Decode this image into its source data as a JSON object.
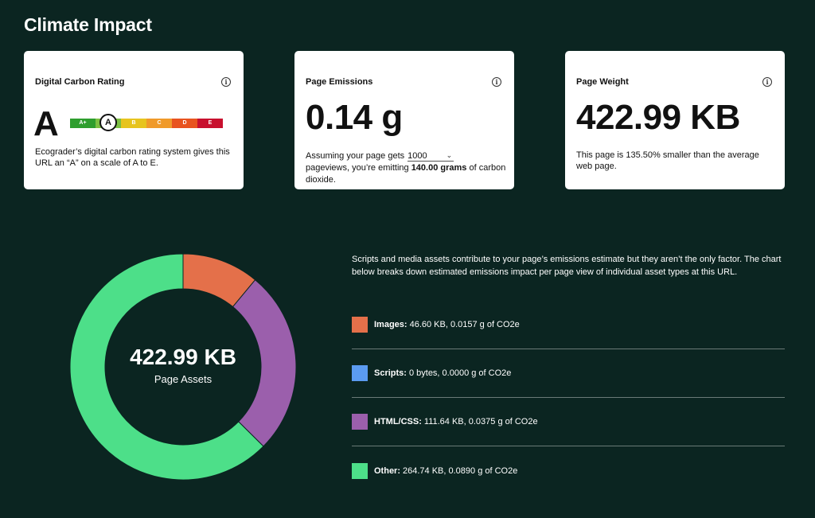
{
  "page": {
    "title": "Climate Impact"
  },
  "rating_card": {
    "title": "Digital Carbon Rating",
    "grade": "A",
    "scale": [
      {
        "label": "A+",
        "color": "#2e9e2e"
      },
      {
        "label": "A",
        "color": "#7cc042"
      },
      {
        "label": "B",
        "color": "#e7c41e"
      },
      {
        "label": "C",
        "color": "#f09a2a"
      },
      {
        "label": "D",
        "color": "#e8531f"
      },
      {
        "label": "E",
        "color": "#c8102e"
      }
    ],
    "selected": "A",
    "description": "Ecograder’s digital carbon rating system gives this URL an “A” on a scale of A to E."
  },
  "emissions_card": {
    "title": "Page Emissions",
    "value": "0.14 g",
    "text_before": "Assuming your page gets",
    "pageviews": "1000",
    "text_mid": "pageviews, you’re emitting",
    "grams": "140.00 grams",
    "text_after": "of carbon dioxide."
  },
  "weight_card": {
    "title": "Page Weight",
    "value": "422.99 KB",
    "description": "This page is 135.50% smaller than the average web page."
  },
  "assets": {
    "total": "422.99 KB",
    "total_label": "Page Assets",
    "intro": "Scripts and media assets contribute to your page’s emissions estimate but they aren’t the only factor. The chart below breaks down estimated emissions impact per page view of individual asset types at this URL.",
    "items": [
      {
        "name": "Images:",
        "detail": "46.60 KB, 0.0157 g of CO2e",
        "color": "#e4704a",
        "kb": 46.6
      },
      {
        "name": "Scripts:",
        "detail": "0 bytes, 0.0000 g of CO2e",
        "color": "#5b9bf0",
        "kb": 0
      },
      {
        "name": "HTML/CSS:",
        "detail": "111.64 KB, 0.0375 g of CO2e",
        "color": "#9b5fac",
        "kb": 111.64
      },
      {
        "name": "Other:",
        "detail": "264.74 KB, 0.0890 g of CO2e",
        "color": "#4ddf89",
        "kb": 264.74
      }
    ]
  }
}
